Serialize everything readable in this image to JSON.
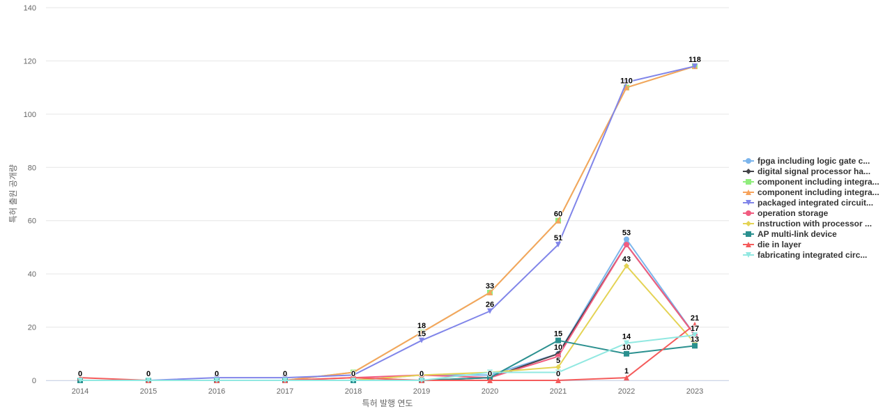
{
  "chart_data": {
    "type": "line",
    "title": "",
    "xlabel": "특허 발행 연도",
    "ylabel": "특허 출원 공개량",
    "x": [
      "2014",
      "2015",
      "2016",
      "2017",
      "2018",
      "2019",
      "2020",
      "2021",
      "2022",
      "2023"
    ],
    "ylim": [
      0,
      140
    ],
    "yticks": [
      0,
      20,
      40,
      60,
      80,
      100,
      120,
      140
    ],
    "grid": true,
    "legend_position": "right",
    "series": [
      {
        "name": "fpga including logic gate c...",
        "color": "#7cb5ec",
        "marker": "circle",
        "values": [
          0,
          0,
          0,
          0,
          0,
          2,
          2,
          10,
          53,
          17
        ]
      },
      {
        "name": "digital signal processor ha...",
        "color": "#434348",
        "marker": "diamond",
        "values": [
          0,
          0,
          0,
          0,
          0,
          0,
          1,
          10,
          51,
          17
        ]
      },
      {
        "name": "component including integra...",
        "color": "#90ed7d",
        "marker": "square",
        "values": [
          0,
          0,
          0,
          0,
          3,
          18,
          33,
          60,
          110,
          118
        ]
      },
      {
        "name": "component including integra...",
        "color": "#f7a35c",
        "marker": "triangle",
        "values": [
          0,
          0,
          0,
          0,
          3,
          18,
          33,
          60,
          110,
          118
        ]
      },
      {
        "name": "packaged integrated circuit...",
        "color": "#8085e9",
        "marker": "triangle-down",
        "values": [
          0,
          0,
          1,
          1,
          2,
          15,
          26,
          51,
          112,
          118
        ]
      },
      {
        "name": "operation storage",
        "color": "#f15c80",
        "marker": "circle",
        "values": [
          0,
          0,
          0,
          0,
          1,
          2,
          1,
          9,
          51,
          17
        ]
      },
      {
        "name": "instruction with processor ...",
        "color": "#e4d354",
        "marker": "diamond",
        "values": [
          0,
          0,
          0,
          0,
          0,
          2,
          3,
          5,
          43,
          14
        ]
      },
      {
        "name": "AP multi-link device",
        "color": "#2b908f",
        "marker": "square",
        "values": [
          0,
          0,
          0,
          0,
          0,
          0,
          1,
          15,
          10,
          13
        ]
      },
      {
        "name": "die in layer",
        "color": "#f45b5b",
        "marker": "triangle",
        "values": [
          1,
          0,
          0,
          0,
          1,
          0,
          0,
          0,
          1,
          21
        ]
      },
      {
        "name": "fabricating integrated circ...",
        "color": "#91e8e1",
        "marker": "triangle-down",
        "values": [
          0,
          0,
          0,
          0,
          0,
          0,
          3,
          3,
          14,
          17
        ]
      }
    ],
    "data_labels": [
      {
        "x": "2014",
        "value": 0
      },
      {
        "x": "2015",
        "value": 0
      },
      {
        "x": "2016",
        "value": 0
      },
      {
        "x": "2017",
        "value": 0
      },
      {
        "x": "2018",
        "value": 0
      },
      {
        "x": "2019",
        "value": 18
      },
      {
        "x": "2019",
        "value": 15
      },
      {
        "x": "2019",
        "value": 0
      },
      {
        "x": "2020",
        "value": 33
      },
      {
        "x": "2020",
        "value": 26
      },
      {
        "x": "2020",
        "value": 0
      },
      {
        "x": "2021",
        "value": 60
      },
      {
        "x": "2021",
        "value": 51
      },
      {
        "x": "2021",
        "value": 15
      },
      {
        "x": "2021",
        "value": 10
      },
      {
        "x": "2021",
        "value": 5
      },
      {
        "x": "2021",
        "value": 0
      },
      {
        "x": "2022",
        "value": 110
      },
      {
        "x": "2022",
        "value": 53
      },
      {
        "x": "2022",
        "value": 43
      },
      {
        "x": "2022",
        "value": 14
      },
      {
        "x": "2022",
        "value": 10
      },
      {
        "x": "2022",
        "value": 1
      },
      {
        "x": "2023",
        "value": 118
      },
      {
        "x": "2023",
        "value": 21
      },
      {
        "x": "2023",
        "value": 17
      },
      {
        "x": "2023",
        "value": 13
      }
    ]
  }
}
